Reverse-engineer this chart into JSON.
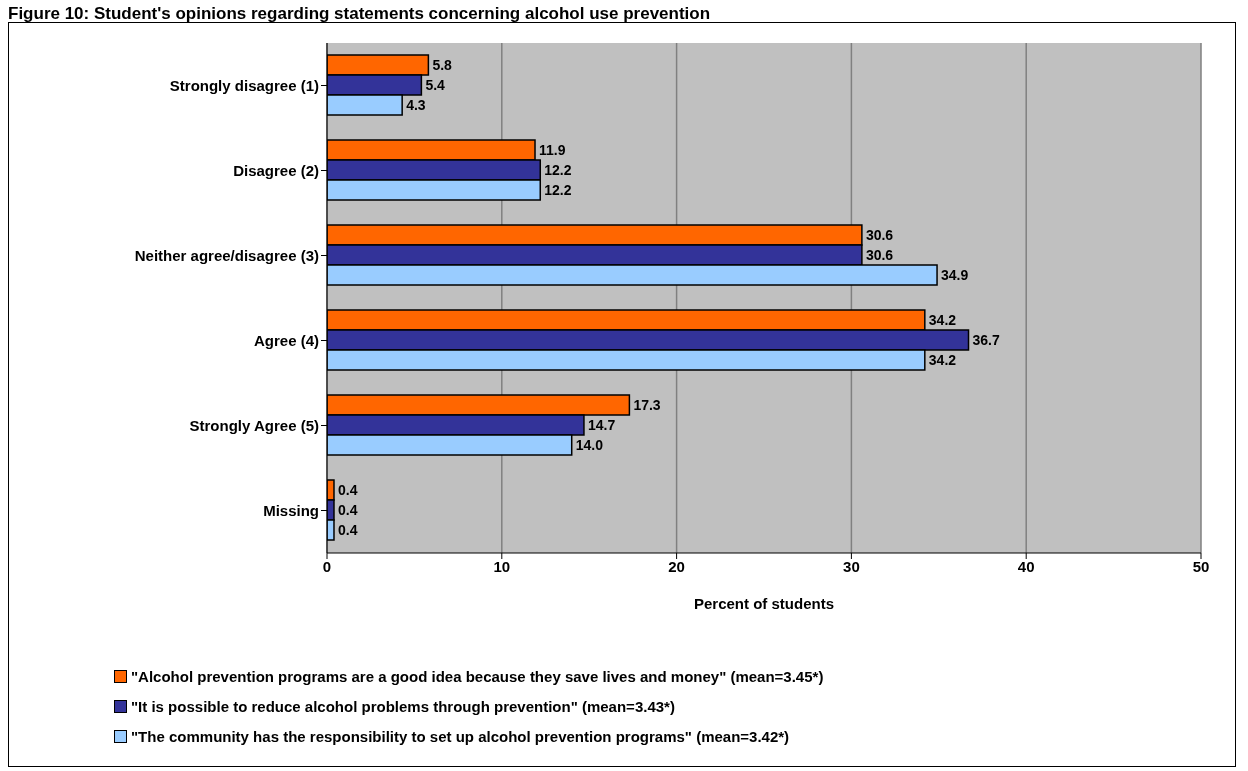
{
  "chart_data": {
    "type": "bar",
    "orientation": "horizontal",
    "title": "Figure 10: Student's opinions regarding statements concerning alcohol use prevention",
    "xlabel": "Percent of students",
    "categories": [
      "Strongly disagree (1)",
      "Disagree (2)",
      "Neither agree/disagree (3)",
      "Agree (4)",
      "Strongly Agree (5)",
      "Missing"
    ],
    "series": [
      {
        "name": "\"Alcohol prevention programs are a good idea because they save lives and money\" (mean=3.45*)",
        "color": "#ff6600",
        "values": [
          5.8,
          11.9,
          30.6,
          34.2,
          17.3,
          0.4
        ],
        "value_labels": [
          "5.8",
          "11.9",
          "30.6",
          "34.2",
          "17.3",
          "0.4"
        ]
      },
      {
        "name": "\"It is possible to reduce alcohol problems through prevention\" (mean=3.43*)",
        "color": "#333399",
        "values": [
          5.4,
          12.2,
          30.6,
          36.7,
          14.7,
          0.4
        ],
        "value_labels": [
          "5.4",
          "12.2",
          "30.6",
          "36.7",
          "14.7",
          "0.4"
        ]
      },
      {
        "name": "\"The community has the responsibility to set up alcohol prevention programs\" (mean=3.42*)",
        "color": "#99ccff",
        "values": [
          4.3,
          12.2,
          34.9,
          34.2,
          14.0,
          0.4
        ],
        "value_labels": [
          "4.3",
          "12.2",
          "34.9",
          "34.2",
          "14.0",
          "0.4"
        ]
      }
    ],
    "xlim": [
      0,
      50
    ],
    "xticks": [
      0,
      10,
      20,
      30,
      40,
      50
    ],
    "grid": "x",
    "legend": "bottom left"
  }
}
